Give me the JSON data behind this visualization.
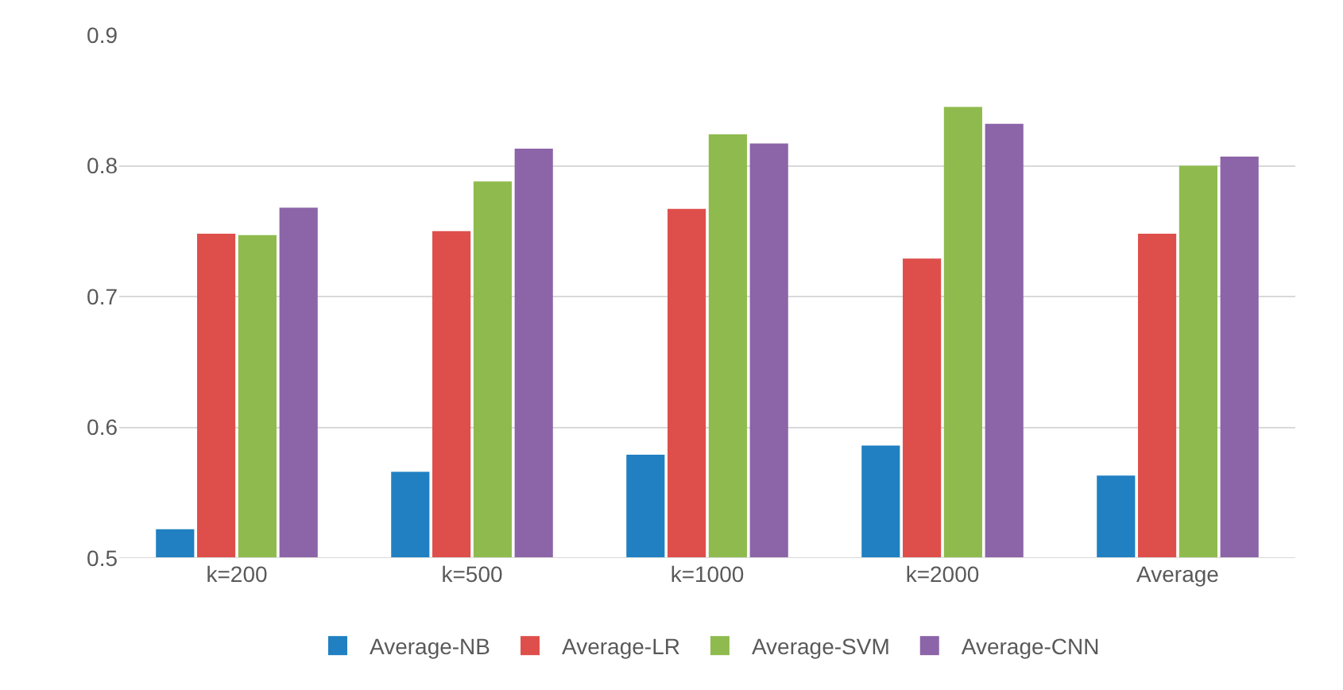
{
  "chart_data": {
    "type": "bar",
    "categories": [
      "k=200",
      "k=500",
      "k=1000",
      "k=2000",
      "Average"
    ],
    "series": [
      {
        "name": "Average-NB",
        "color": "#2080c2",
        "values": [
          0.522,
          0.566,
          0.579,
          0.586,
          0.563
        ]
      },
      {
        "name": "Average-LR",
        "color": "#de4f4b",
        "values": [
          0.748,
          0.75,
          0.767,
          0.729,
          0.748
        ]
      },
      {
        "name": "Average-SVM",
        "color": "#8fbb4e",
        "values": [
          0.747,
          0.788,
          0.824,
          0.845,
          0.8
        ]
      },
      {
        "name": "Average-CNN",
        "color": "#8c64a8",
        "values": [
          0.768,
          0.813,
          0.817,
          0.832,
          0.807
        ]
      }
    ],
    "ylim": [
      0.5,
      0.9
    ],
    "yticks": [
      0.5,
      0.6,
      0.7,
      0.8,
      0.9
    ],
    "grid": "y",
    "legend": "bottom"
  }
}
